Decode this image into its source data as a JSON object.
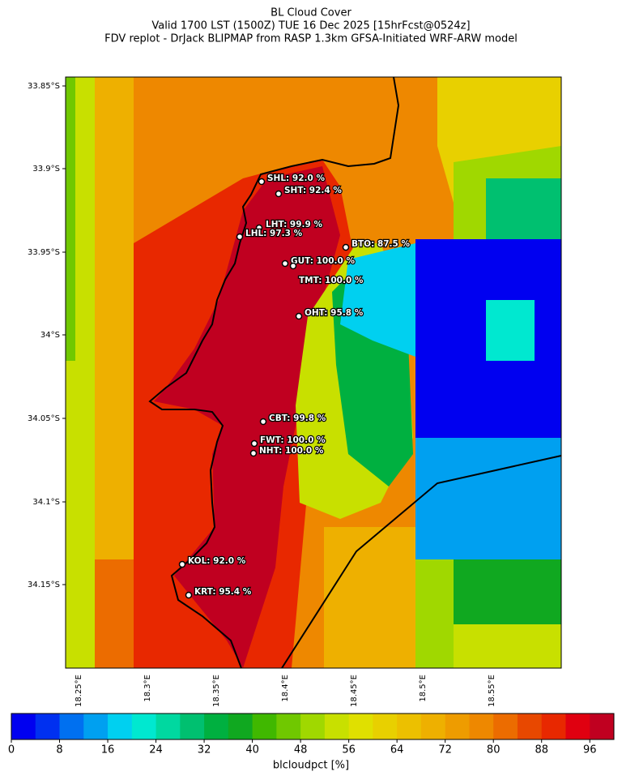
{
  "header": {
    "title": "BL Cloud Cover",
    "subtitle_1": "Valid 1700 LST (1500Z) TUE 16 Dec 2025 [15hrFcst@0524z]",
    "subtitle_2": "FDV replot - DrJack BLIPMAP from RASP 1.3km GFSA-Initiated WRF-ARW model"
  },
  "map": {
    "lat_labels": [
      "33.85°S",
      "33.9°S",
      "33.95°S",
      "34°S",
      "34.05°S",
      "34.1°S",
      "34.15°S"
    ],
    "lon_labels": [
      "18.25°E",
      "18.3°E",
      "18.35°E",
      "18.4°E",
      "18.45°E",
      "18.5°E",
      "18.55°E"
    ],
    "stations": [
      "SHL: 92.0 %",
      "SHT: 92.4 %",
      "LHT: 99.9 %",
      "LHL: 97.3 %",
      "BTO: 87.5 %",
      "GUT: 100.0 %",
      "TMT: 100.0 %",
      "OHT: 95.8 %",
      "CBT: 99.8 %",
      "FWT: 100.0 %",
      "NHT: 100.0 %",
      "KOL: 92.0 %",
      "KRT: 95.4 %"
    ]
  },
  "colorbar": {
    "label": "blcloudpct [%]",
    "lim": [
      0,
      100
    ],
    "ticks": [
      0,
      8,
      16,
      24,
      32,
      40,
      48,
      56,
      64,
      72,
      80,
      88,
      96
    ],
    "colors": [
      "#0000f0",
      "#0030f0",
      "#0070f0",
      "#00a0f0",
      "#00d0f0",
      "#00e8d0",
      "#00d8a0",
      "#00c070",
      "#00b040",
      "#10a820",
      "#40b800",
      "#70c800",
      "#a0d800",
      "#c8e000",
      "#e0e000",
      "#e8d000",
      "#ecc000",
      "#eeb000",
      "#ee9c00",
      "#ee8800",
      "#ec6c00",
      "#e84800",
      "#e82800",
      "#e00010",
      "#c00020"
    ]
  }
}
